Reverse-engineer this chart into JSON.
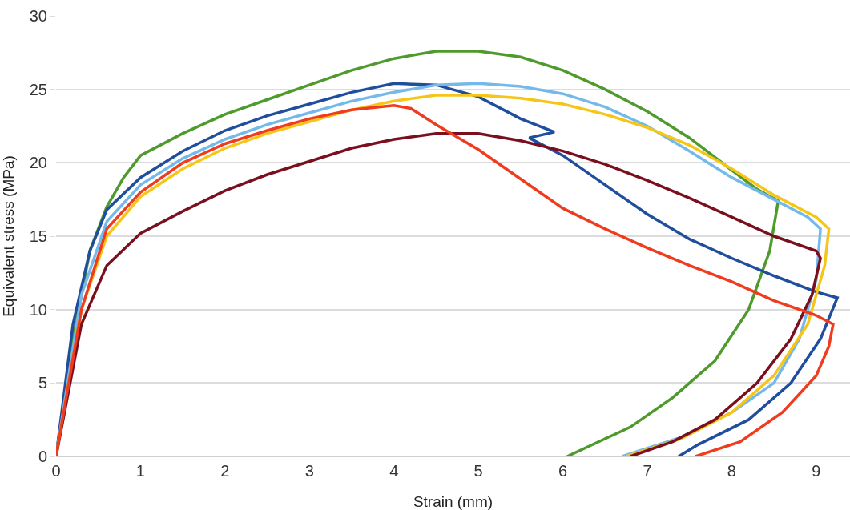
{
  "chart_data": {
    "type": "line",
    "xlabel": "Strain (mm)",
    "ylabel": "Equivalent stress (MPa)",
    "xlim": [
      0,
      9.4
    ],
    "ylim": [
      0,
      30
    ],
    "xticks": [
      0,
      1,
      2,
      3,
      4,
      5,
      6,
      7,
      8,
      9
    ],
    "yticks": [
      0,
      5,
      10,
      15,
      20,
      25,
      30
    ],
    "grid": "y",
    "marker": "none",
    "line_style": "solid",
    "series": [
      {
        "color": "#4f9a2c",
        "x": [
          0,
          0.2,
          0.4,
          0.6,
          0.8,
          1,
          1.5,
          2,
          2.5,
          3,
          3.5,
          4,
          4.5,
          5,
          5.5,
          6,
          6.5,
          7,
          7.5,
          8,
          8.3,
          8.55,
          8.45,
          8.2,
          7.8,
          7.3,
          6.8,
          6.05
        ],
        "values": [
          0,
          8,
          14,
          17,
          19,
          20.5,
          22,
          23.3,
          24.3,
          25.3,
          26.3,
          27.1,
          27.6,
          27.6,
          27.2,
          26.3,
          25,
          23.5,
          21.7,
          19.5,
          18.2,
          17.4,
          14,
          10,
          6.5,
          4,
          2,
          0
        ]
      },
      {
        "color": "#1f4e9c",
        "x": [
          0,
          0.2,
          0.4,
          0.6,
          1,
          1.5,
          2,
          2.5,
          3,
          3.5,
          4,
          4.5,
          5,
          5.5,
          5.9,
          5.6,
          6,
          6.5,
          7,
          7.5,
          8,
          8.5,
          9,
          9.25,
          9.05,
          8.7,
          8.2,
          7.6,
          7.37
        ],
        "values": [
          0,
          9,
          14,
          16.8,
          19,
          20.8,
          22.2,
          23.2,
          24,
          24.8,
          25.4,
          25.3,
          24.5,
          23,
          22.1,
          21.7,
          20.5,
          18.5,
          16.5,
          14.8,
          13.5,
          12.3,
          11.2,
          10.8,
          8,
          5,
          2.5,
          0.8,
          0
        ]
      },
      {
        "color": "#74b9ea",
        "x": [
          0,
          0.3,
          0.6,
          1,
          1.5,
          2,
          2.5,
          3,
          3.5,
          4,
          4.5,
          5,
          5.5,
          6,
          6.5,
          7,
          7.5,
          8,
          8.5,
          8.9,
          9.05,
          9.0,
          8.8,
          8.5,
          8.0,
          7.4,
          6.7
        ],
        "values": [
          0,
          11,
          16,
          18.5,
          20.3,
          21.6,
          22.6,
          23.4,
          24.2,
          24.8,
          25.3,
          25.4,
          25.2,
          24.7,
          23.8,
          22.5,
          20.8,
          19,
          17.5,
          16.3,
          15.5,
          12,
          8,
          5,
          3,
          1.3,
          0
        ]
      },
      {
        "color": "#f5c518",
        "x": [
          0,
          0.3,
          0.6,
          1,
          1.5,
          2,
          2.5,
          3,
          3.5,
          4,
          4.5,
          5,
          5.5,
          6,
          6.5,
          7,
          7.5,
          8,
          8.5,
          9,
          9.15,
          9.1,
          8.9,
          8.5,
          8,
          7.4,
          6.75
        ],
        "values": [
          0,
          10,
          15,
          17.7,
          19.6,
          21,
          22,
          22.8,
          23.6,
          24.2,
          24.6,
          24.6,
          24.4,
          24,
          23.3,
          22.4,
          21.2,
          19.6,
          17.8,
          16.3,
          15.5,
          13,
          9,
          5.5,
          3,
          1.2,
          0
        ]
      },
      {
        "color": "#7a0f1e",
        "x": [
          0,
          0.3,
          0.6,
          1,
          1.5,
          2,
          2.5,
          3,
          3.5,
          4,
          4.5,
          5,
          5.5,
          6,
          6.5,
          7,
          7.5,
          8,
          8.5,
          9,
          9.05,
          8.95,
          8.7,
          8.3,
          7.8,
          7.3,
          6.8
        ],
        "values": [
          0,
          9,
          13,
          15.2,
          16.7,
          18.1,
          19.2,
          20.1,
          21,
          21.6,
          22,
          22,
          21.5,
          20.8,
          19.9,
          18.8,
          17.6,
          16.3,
          15,
          14,
          13.5,
          11,
          8,
          5,
          2.5,
          1,
          0
        ]
      },
      {
        "color": "#f03c1e",
        "x": [
          0,
          0.3,
          0.6,
          1,
          1.5,
          2,
          2.5,
          3,
          3.5,
          4,
          4.2,
          4.5,
          5,
          5.5,
          6,
          6.5,
          7,
          7.5,
          8,
          8.5,
          9,
          9.2,
          9.15,
          9,
          8.6,
          8.1,
          7.57
        ],
        "values": [
          0,
          10,
          15.5,
          18,
          20,
          21.3,
          22.2,
          23,
          23.6,
          23.9,
          23.7,
          22.6,
          20.9,
          18.9,
          16.9,
          15.5,
          14.2,
          13,
          11.9,
          10.6,
          9.6,
          9,
          7.5,
          5.5,
          3,
          1,
          0
        ]
      }
    ]
  }
}
